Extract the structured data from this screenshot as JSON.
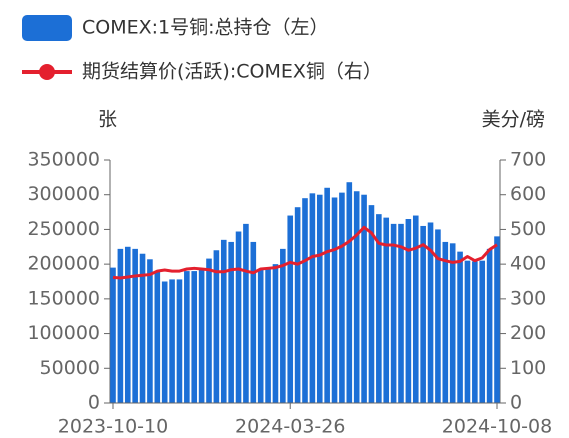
{
  "chart_data": {
    "type": "combo",
    "ylabel": "张",
    "y2label": "美分/磅",
    "categories": [
      "2023-10-10",
      null,
      null,
      null,
      null,
      null,
      null,
      null,
      null,
      null,
      null,
      null,
      null,
      null,
      null,
      null,
      null,
      null,
      null,
      null,
      null,
      null,
      null,
      null,
      "2024-03-26",
      null,
      null,
      null,
      null,
      null,
      null,
      null,
      null,
      null,
      null,
      null,
      null,
      null,
      null,
      null,
      null,
      null,
      null,
      null,
      null,
      null,
      null,
      null,
      null,
      null,
      null,
      null,
      "2024-10-08"
    ],
    "series": [
      {
        "name": "COMEX:1号铜:总持仓（左）",
        "type": "bar",
        "color": "#1c6fd6",
        "values": [
          195000,
          222000,
          225000,
          222000,
          215000,
          207000,
          190000,
          175000,
          178000,
          178000,
          190000,
          190000,
          192000,
          208000,
          220000,
          235000,
          232000,
          247000,
          258000,
          232000,
          192000,
          195000,
          200000,
          222000,
          270000,
          282000,
          295000,
          302000,
          300000,
          310000,
          296000,
          303000,
          318000,
          305000,
          300000,
          285000,
          272000,
          267000,
          258000,
          258000,
          265000,
          270000,
          255000,
          260000,
          250000,
          232000,
          230000,
          218000,
          205000,
          204000,
          205000,
          222000,
          240000
        ]
      },
      {
        "name": "期货结算价(活跃):COMEX铜（右）",
        "type": "line",
        "axis": "y2",
        "color": "#e4202e",
        "values": [
          362,
          360,
          363,
          366,
          368,
          370,
          380,
          383,
          380,
          380,
          386,
          388,
          386,
          384,
          378,
          378,
          384,
          386,
          380,
          375,
          386,
          388,
          390,
          396,
          405,
          400,
          410,
          422,
          426,
          436,
          442,
          452,
          466,
          484,
          506,
          490,
          460,
          455,
          455,
          450,
          440,
          446,
          456,
          440,
          416,
          410,
          405,
          408,
          422,
          410,
          418,
          442,
          456
        ]
      }
    ],
    "ylim": [
      0,
      350000
    ],
    "yticks": [
      0,
      50000,
      100000,
      150000,
      200000,
      250000,
      300000,
      350000
    ],
    "y2lim": [
      0,
      700
    ],
    "y2ticks": [
      0,
      100,
      200,
      300,
      400,
      500,
      600,
      700
    ]
  }
}
